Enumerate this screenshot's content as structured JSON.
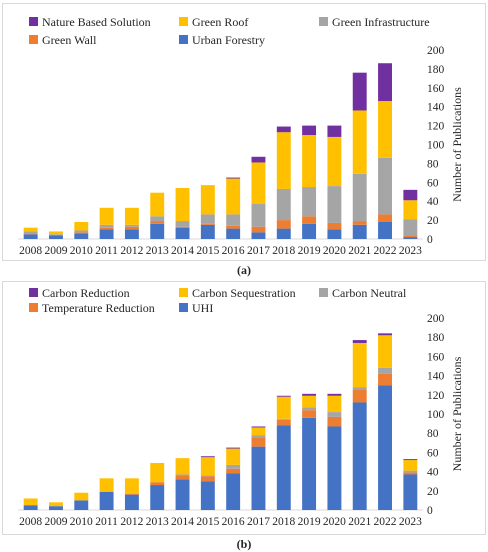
{
  "chart_data": [
    {
      "type": "bar",
      "stacked": true,
      "ylabel": "Number of Publications",
      "ylim": [
        0,
        200
      ],
      "yticks": [
        0,
        20,
        40,
        60,
        80,
        100,
        120,
        140,
        160,
        180,
        200
      ],
      "yaxis_side": "right",
      "grid": false,
      "legend_position": "top",
      "categories": [
        "2008",
        "2009",
        "2010",
        "2011",
        "2012",
        "2013",
        "2014",
        "2015",
        "2016",
        "2017",
        "2018",
        "2019",
        "2020",
        "2021",
        "2022",
        "2023"
      ],
      "series": [
        {
          "name": "Urban Forestry",
          "color": "#4472c4",
          "values": [
            5,
            4,
            6,
            10,
            10,
            16,
            12,
            15,
            11,
            7,
            11,
            16,
            10,
            15,
            18,
            2
          ]
        },
        {
          "name": "Green Wall",
          "color": "#ed7d31",
          "values": [
            1,
            0,
            1,
            2,
            3,
            3,
            1,
            1,
            3,
            6,
            9,
            8,
            7,
            4,
            8,
            2
          ]
        },
        {
          "name": "Green Infrastructure",
          "color": "#a5a5a5",
          "values": [
            2,
            1,
            2,
            3,
            2,
            5,
            6,
            10,
            12,
            24,
            33,
            31,
            39,
            50,
            60,
            17
          ]
        },
        {
          "name": "Green Roof",
          "color": "#ffc000",
          "values": [
            4,
            3,
            9,
            18,
            18,
            25,
            35,
            31,
            38,
            44,
            60,
            55,
            52,
            67,
            60,
            20
          ]
        },
        {
          "name": "Nature Based Solution",
          "color": "#7030a0",
          "values": [
            0,
            0,
            0,
            0,
            0,
            0,
            0,
            0,
            1,
            6,
            6,
            10,
            12,
            40,
            40,
            11
          ]
        }
      ],
      "caption_label": "(a)"
    },
    {
      "type": "bar",
      "stacked": true,
      "ylabel": "Number of Publications",
      "ylim": [
        0,
        200
      ],
      "yticks": [
        0,
        20,
        40,
        60,
        80,
        100,
        120,
        140,
        160,
        180,
        200
      ],
      "yaxis_side": "right",
      "grid": false,
      "legend_position": "top",
      "categories": [
        "2008",
        "2009",
        "2010",
        "2011",
        "2012",
        "2013",
        "2014",
        "2015",
        "2016",
        "2017",
        "2018",
        "2019",
        "2020",
        "2021",
        "2022",
        "2023"
      ],
      "series": [
        {
          "name": "UHI",
          "color": "#4472c4",
          "values": [
            5,
            4,
            10,
            19,
            16,
            26,
            32,
            30,
            38,
            66,
            88,
            96,
            87,
            112,
            130,
            37
          ]
        },
        {
          "name": "Temperature Reduction",
          "color": "#ed7d31",
          "values": [
            0,
            0,
            0,
            0,
            1,
            3,
            4,
            5,
            5,
            9,
            6,
            8,
            10,
            13,
            12,
            2
          ]
        },
        {
          "name": "Carbon Neutral",
          "color": "#a5a5a5",
          "values": [
            0,
            0,
            0,
            0,
            0,
            0,
            1,
            1,
            4,
            3,
            1,
            3,
            5,
            3,
            6,
            2
          ]
        },
        {
          "name": "Carbon Sequestration",
          "color": "#ffc000",
          "values": [
            7,
            4,
            8,
            14,
            16,
            20,
            17,
            19,
            17,
            8,
            23,
            12,
            17,
            46,
            34,
            11
          ]
        },
        {
          "name": "Carbon Reduction",
          "color": "#7030a0",
          "values": [
            0,
            0,
            0,
            0,
            0,
            0,
            0,
            1,
            1,
            1,
            1,
            2,
            2,
            3,
            2,
            1
          ]
        }
      ],
      "caption_label": "(b)"
    }
  ],
  "legend_order_a": [
    "Nature Based Solution",
    "Green Roof",
    "Green Infrastructure",
    "Green Wall",
    "Urban Forestry"
  ],
  "legend_order_b": [
    "Carbon Reduction",
    "Carbon Sequestration",
    "Carbon Neutral",
    "Temperature Reduction",
    "UHI"
  ],
  "captions": {
    "a": "(a)",
    "b": "(b)"
  }
}
